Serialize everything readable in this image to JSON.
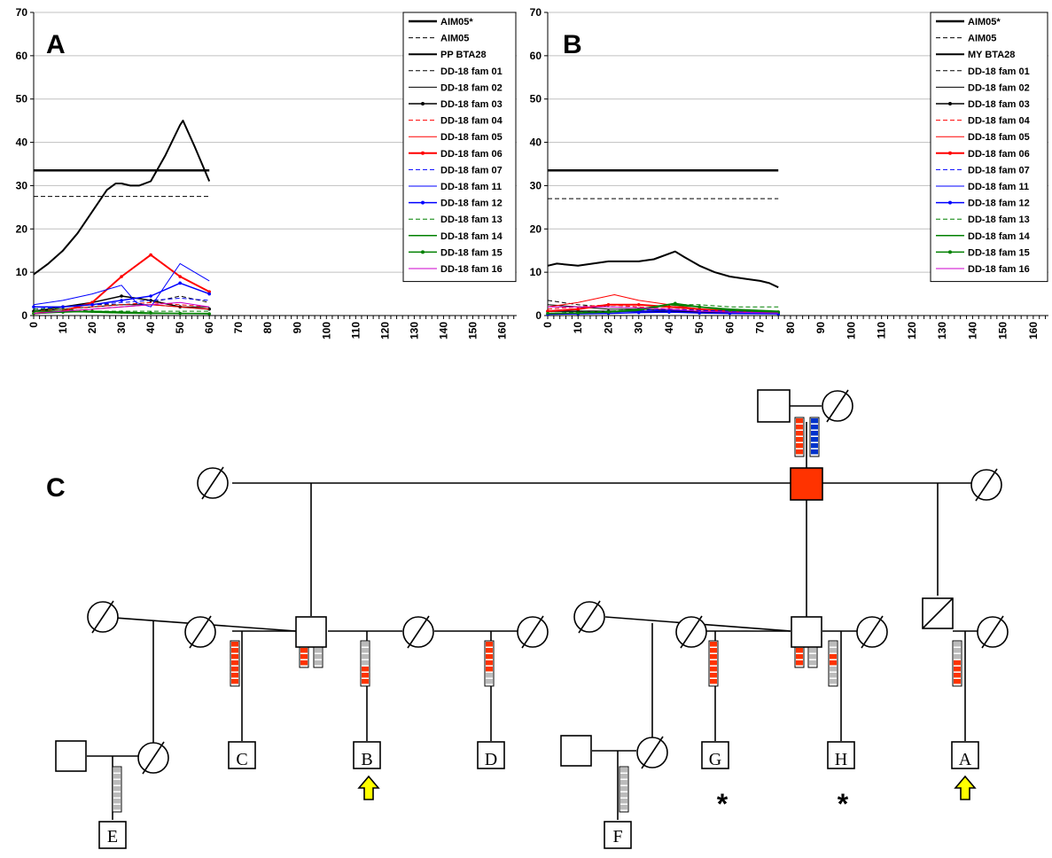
{
  "chart_data": [
    {
      "type": "line",
      "panel_label": "A",
      "ylim": [
        0,
        70
      ],
      "yticks": [
        0,
        10,
        20,
        30,
        40,
        50,
        60,
        70
      ],
      "xlim": [
        0,
        165
      ],
      "xticks": [
        0,
        10,
        20,
        30,
        40,
        50,
        60,
        70,
        80,
        90,
        100,
        110,
        120,
        130,
        140,
        150,
        160
      ],
      "legend_position": "top-right",
      "grid": "horizontal",
      "series": [
        {
          "name": "AIM05*",
          "color": "#000000",
          "style": "solid",
          "width": 2.5,
          "marker": false,
          "x": [
            0,
            60
          ],
          "y": [
            33.5,
            33.5
          ]
        },
        {
          "name": "AIM05",
          "color": "#000000",
          "style": "dashed",
          "width": 1,
          "marker": false,
          "x": [
            0,
            60
          ],
          "y": [
            27.5,
            27.5
          ]
        },
        {
          "name": "PP BTA28",
          "color": "#000000",
          "style": "solid",
          "width": 2,
          "marker": false,
          "x": [
            0,
            5,
            10,
            15,
            20,
            25,
            28,
            30,
            33,
            36,
            40,
            45,
            50,
            51,
            55,
            60
          ],
          "y": [
            9.5,
            12,
            15,
            19,
            24,
            29,
            30.5,
            30.5,
            30,
            30,
            31,
            37,
            44,
            45,
            39,
            31
          ]
        },
        {
          "name": "DD-18 fam 01",
          "color": "#000000",
          "style": "dashed",
          "width": 1,
          "marker": false,
          "x": [
            0,
            10,
            20,
            30,
            40,
            50,
            60
          ],
          "y": [
            1.5,
            2,
            2.5,
            2.5,
            3,
            4.5,
            3
          ]
        },
        {
          "name": "DD-18 fam 02",
          "color": "#000000",
          "style": "solid",
          "width": 1,
          "marker": false,
          "x": [
            0,
            10,
            20,
            30,
            40,
            50,
            60
          ],
          "y": [
            1,
            1.5,
            2,
            2.5,
            2.5,
            2,
            2
          ]
        },
        {
          "name": "DD-18 fam 03",
          "color": "#000000",
          "style": "solid",
          "width": 1.5,
          "marker": true,
          "x": [
            0,
            10,
            20,
            30,
            40,
            50,
            60
          ],
          "y": [
            1,
            2,
            3,
            4.5,
            3.5,
            2,
            1.5
          ]
        },
        {
          "name": "DD-18 fam 04",
          "color": "#ff0000",
          "style": "dashed",
          "width": 1,
          "marker": false,
          "x": [
            0,
            10,
            20,
            30,
            40,
            50,
            60
          ],
          "y": [
            1,
            1.5,
            2,
            2.5,
            3,
            2.5,
            2
          ]
        },
        {
          "name": "DD-18 fam 05",
          "color": "#ff0000",
          "style": "solid",
          "width": 1,
          "marker": false,
          "x": [
            0,
            10,
            20,
            30,
            40,
            50,
            60
          ],
          "y": [
            0.5,
            1,
            1.5,
            2,
            2.5,
            2,
            1.5
          ]
        },
        {
          "name": "DD-18 fam 06",
          "color": "#ff0000",
          "style": "solid",
          "width": 2,
          "marker": true,
          "x": [
            0,
            10,
            20,
            30,
            40,
            50,
            60
          ],
          "y": [
            0.5,
            1,
            3,
            9,
            14,
            9,
            5.5
          ]
        },
        {
          "name": "DD-18 fam 07",
          "color": "#0000ff",
          "style": "dashed",
          "width": 1,
          "marker": false,
          "x": [
            0,
            10,
            20,
            30,
            40,
            50,
            60
          ],
          "y": [
            1.5,
            2,
            2.5,
            3,
            3.5,
            4,
            3.5
          ]
        },
        {
          "name": "DD-18 fam 11",
          "color": "#0000ff",
          "style": "solid",
          "width": 1,
          "marker": false,
          "x": [
            0,
            10,
            20,
            30,
            35,
            40,
            50,
            60
          ],
          "y": [
            2.5,
            3.5,
            5,
            7,
            3,
            2,
            12,
            8
          ]
        },
        {
          "name": "DD-18 fam 12",
          "color": "#0000ff",
          "style": "solid",
          "width": 1.5,
          "marker": true,
          "x": [
            0,
            10,
            20,
            30,
            40,
            50,
            60
          ],
          "y": [
            2,
            2,
            2.5,
            3.5,
            4.5,
            7.5,
            5
          ]
        },
        {
          "name": "DD-18 fam 13",
          "color": "#008000",
          "style": "dashed",
          "width": 1,
          "marker": false,
          "x": [
            0,
            10,
            20,
            30,
            40,
            50,
            60
          ],
          "y": [
            1.5,
            1.5,
            1,
            1,
            1,
            1,
            1
          ]
        },
        {
          "name": "DD-18 fam 14",
          "color": "#008000",
          "style": "solid",
          "width": 1.5,
          "marker": false,
          "x": [
            0,
            10,
            20,
            30,
            40,
            50,
            60
          ],
          "y": [
            1,
            1,
            0.8,
            0.6,
            0.5,
            0.5,
            0.5
          ]
        },
        {
          "name": "DD-18 fam 15",
          "color": "#008000",
          "style": "solid",
          "width": 1.5,
          "marker": true,
          "x": [
            0,
            10,
            20,
            30,
            40,
            50,
            60
          ],
          "y": [
            0.5,
            0.8,
            1,
            0.8,
            0.6,
            0.5,
            0.4
          ]
        },
        {
          "name": "DD-18 fam 16",
          "color": "#cc00cc",
          "style": "solid",
          "width": 1,
          "marker": false,
          "x": [
            0,
            10,
            20,
            30,
            40,
            50,
            60
          ],
          "y": [
            0.5,
            1,
            1.5,
            2,
            2.5,
            3,
            2
          ]
        }
      ]
    },
    {
      "type": "line",
      "panel_label": "B",
      "ylim": [
        0,
        70
      ],
      "yticks": [
        0,
        10,
        20,
        30,
        40,
        50,
        60,
        70
      ],
      "xlim": [
        0,
        165
      ],
      "xticks": [
        0,
        10,
        20,
        30,
        40,
        50,
        60,
        70,
        80,
        90,
        100,
        110,
        120,
        130,
        140,
        150,
        160
      ],
      "legend_position": "top-right",
      "grid": "horizontal",
      "series": [
        {
          "name": "AIM05*",
          "color": "#000000",
          "style": "solid",
          "width": 2.5,
          "marker": false,
          "x": [
            0,
            76
          ],
          "y": [
            33.5,
            33.5
          ]
        },
        {
          "name": "AIM05",
          "color": "#000000",
          "style": "dashed",
          "width": 1,
          "marker": false,
          "x": [
            0,
            76
          ],
          "y": [
            27,
            27
          ]
        },
        {
          "name": "MY BTA28",
          "color": "#000000",
          "style": "solid",
          "width": 2,
          "marker": false,
          "x": [
            0,
            3,
            10,
            20,
            25,
            30,
            35,
            42,
            45,
            50,
            55,
            60,
            65,
            70,
            73,
            76
          ],
          "y": [
            11.5,
            12,
            11.5,
            12.5,
            12.5,
            12.5,
            13,
            14.8,
            13.5,
            11.5,
            10,
            9,
            8.5,
            8,
            7.5,
            6.5
          ]
        },
        {
          "name": "DD-18 fam 01",
          "color": "#000000",
          "style": "dashed",
          "width": 1,
          "marker": false,
          "x": [
            0,
            10,
            20,
            30,
            40,
            50,
            60,
            76
          ],
          "y": [
            3.5,
            2.5,
            2,
            1.8,
            1.5,
            1.2,
            1,
            1
          ]
        },
        {
          "name": "DD-18 fam 02",
          "color": "#000000",
          "style": "solid",
          "width": 1,
          "marker": false,
          "x": [
            0,
            10,
            20,
            30,
            40,
            50,
            60,
            76
          ],
          "y": [
            2.5,
            2,
            1.5,
            1.5,
            1.2,
            1,
            0.8,
            0.8
          ]
        },
        {
          "name": "DD-18 fam 03",
          "color": "#000000",
          "style": "solid",
          "width": 1.5,
          "marker": true,
          "x": [
            0,
            10,
            20,
            30,
            40,
            50,
            60,
            76
          ],
          "y": [
            1,
            1,
            1,
            1,
            1,
            0.8,
            0.7,
            0.6
          ]
        },
        {
          "name": "DD-18 fam 04",
          "color": "#ff0000",
          "style": "dashed",
          "width": 1,
          "marker": false,
          "x": [
            0,
            10,
            20,
            30,
            40,
            50,
            60,
            76
          ],
          "y": [
            1.5,
            2,
            2.5,
            2,
            1.5,
            1.2,
            1,
            1
          ]
        },
        {
          "name": "DD-18 fam 05",
          "color": "#ff0000",
          "style": "solid",
          "width": 1,
          "marker": false,
          "x": [
            0,
            10,
            22,
            30,
            40,
            50,
            60,
            76
          ],
          "y": [
            2,
            3,
            4.8,
            3.5,
            2.5,
            1.5,
            1,
            0.8
          ]
        },
        {
          "name": "DD-18 fam 06",
          "color": "#ff0000",
          "style": "solid",
          "width": 2,
          "marker": true,
          "x": [
            0,
            10,
            20,
            30,
            40,
            50,
            60,
            76
          ],
          "y": [
            1,
            1.5,
            2.5,
            2.5,
            2,
            1.5,
            1,
            0.8
          ]
        },
        {
          "name": "DD-18 fam 07",
          "color": "#0000ff",
          "style": "dashed",
          "width": 1,
          "marker": false,
          "x": [
            0,
            10,
            20,
            30,
            40,
            50,
            60,
            76
          ],
          "y": [
            0.5,
            0.8,
            1,
            1.2,
            1.5,
            1.2,
            1,
            0.8
          ]
        },
        {
          "name": "DD-18 fam 11",
          "color": "#0000ff",
          "style": "solid",
          "width": 1,
          "marker": false,
          "x": [
            0,
            10,
            20,
            30,
            40,
            50,
            60,
            76
          ],
          "y": [
            0.5,
            0.5,
            0.8,
            1,
            1.2,
            1,
            0.8,
            0.6
          ]
        },
        {
          "name": "DD-18 fam 12",
          "color": "#0000ff",
          "style": "solid",
          "width": 1.5,
          "marker": true,
          "x": [
            0,
            10,
            20,
            30,
            40,
            50,
            60,
            76
          ],
          "y": [
            0.3,
            0.4,
            0.5,
            0.7,
            0.8,
            0.6,
            0.5,
            0.4
          ]
        },
        {
          "name": "DD-18 fam 13",
          "color": "#008000",
          "style": "dashed",
          "width": 1,
          "marker": false,
          "x": [
            0,
            10,
            20,
            30,
            40,
            50,
            60,
            76
          ],
          "y": [
            0.5,
            0.8,
            1,
            1.5,
            2.5,
            2.5,
            2,
            2
          ]
        },
        {
          "name": "DD-18 fam 14",
          "color": "#008000",
          "style": "solid",
          "width": 1.5,
          "marker": false,
          "x": [
            0,
            10,
            20,
            30,
            40,
            50,
            60,
            76
          ],
          "y": [
            0.5,
            0.6,
            0.8,
            1.2,
            2.5,
            2,
            1.5,
            1
          ]
        },
        {
          "name": "DD-18 fam 15",
          "color": "#008000",
          "style": "solid",
          "width": 1.5,
          "marker": true,
          "x": [
            0,
            10,
            20,
            30,
            42,
            50,
            60,
            76
          ],
          "y": [
            0.5,
            0.6,
            0.8,
            1.5,
            2.8,
            2,
            1.2,
            0.8
          ]
        },
        {
          "name": "DD-18 fam 16",
          "color": "#cc00cc",
          "style": "solid",
          "width": 1,
          "marker": false,
          "x": [
            0,
            10,
            20,
            30,
            40,
            50,
            60,
            76
          ],
          "y": [
            2,
            2,
            2,
            1.8,
            1.5,
            1,
            0.8,
            0.6
          ]
        }
      ]
    }
  ],
  "pedigree": {
    "panel_label": "C",
    "individual_labels": [
      "C",
      "B",
      "D",
      "E",
      "G",
      "H",
      "A",
      "F"
    ],
    "marker_star": "*",
    "colors": {
      "affected_fill": "#ff3300",
      "haplotype_red": "#ff3300",
      "haplotype_blue": "#0033cc",
      "haplotype_grey": "#bbbbbb",
      "proband_arrow": "#ffff00"
    }
  }
}
